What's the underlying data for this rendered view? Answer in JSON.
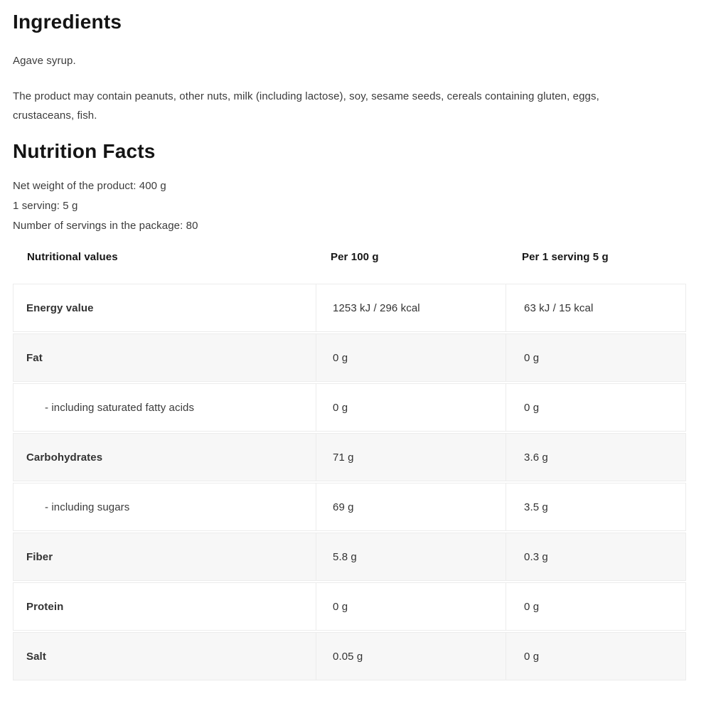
{
  "ingredients": {
    "title": "Ingredients",
    "main_text": "Agave syrup.",
    "allergen_lines": [
      "The product may contain peanuts, other nuts, milk (including lactose), soy, sesame seeds, cereals containing gluten, eggs,",
      "crustaceans, fish."
    ]
  },
  "nutrition_facts": {
    "title": "Nutrition Facts",
    "net_weight": "Net weight of the product: 400 g",
    "serving_size": "1 serving: 5 g",
    "servings_per_package": "Number of servings in the package: 80",
    "table": {
      "headers": {
        "column1": "Nutritional values",
        "column2": "Per 100 g",
        "column3": "Per 1 serving 5 g"
      },
      "rows": [
        {
          "label": "Energy value",
          "per_100g": "1253 kJ / 296 kcal",
          "per_serving": "63 kJ / 15 kcal"
        },
        {
          "label": "Fat",
          "per_100g": "0 g",
          "per_serving": "0 g"
        },
        {
          "label": "- including saturated fatty acids",
          "per_100g": "0 g",
          "per_serving": "0 g"
        },
        {
          "label": "Carbohydrates",
          "per_100g": "71 g",
          "per_serving": "3.6 g"
        },
        {
          "label": "- including sugars",
          "per_100g": "69 g",
          "per_serving": "3.5 g"
        },
        {
          "label": "Fiber",
          "per_100g": "5.8 g",
          "per_serving": "0.3 g"
        },
        {
          "label": "Protein",
          "per_100g": "0 g",
          "per_serving": "0 g"
        },
        {
          "label": "Salt",
          "per_100g": "0.05 g",
          "per_serving": "0 g"
        }
      ]
    }
  },
  "colors": {
    "heading_text": "#141414",
    "body_text": "#3b3b3b",
    "table_border": "#ececec",
    "row_alternate_bg": "#f7f7f7",
    "page_background": "#ffffff"
  }
}
